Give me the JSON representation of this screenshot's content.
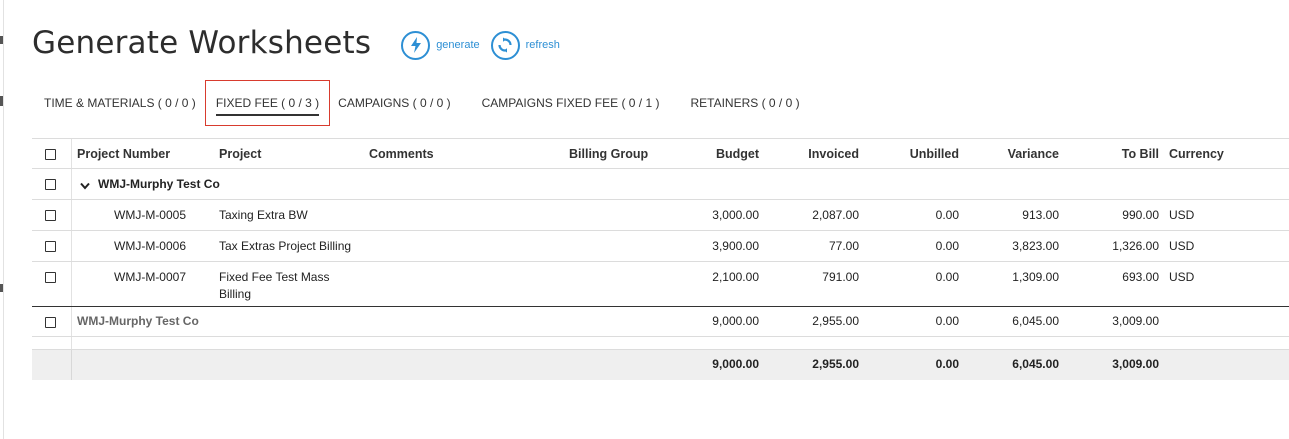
{
  "page": {
    "title": "Generate Worksheets",
    "actions": [
      {
        "label": "generate",
        "icon": "bolt-icon"
      },
      {
        "label": "refresh",
        "icon": "refresh-icon"
      }
    ]
  },
  "colors": {
    "accent": "#2d8fd4",
    "active_tab_border": "#d83b2e"
  },
  "tabs": [
    {
      "label": "TIME & MATERIALS ( 0 / 0 )"
    },
    {
      "label": "FIXED FEE ( 0 / 3 )",
      "active": true
    },
    {
      "label": "CAMPAIGNS ( 0 / 0 )"
    },
    {
      "label": "CAMPAIGNS FIXED FEE ( 0 / 1 )"
    },
    {
      "label": "RETAINERS ( 0 / 0 )"
    }
  ],
  "table": {
    "columns": {
      "project_number": "Project Number",
      "project": "Project",
      "comments": "Comments",
      "billing_group": "Billing Group",
      "budget": "Budget",
      "invoiced": "Invoiced",
      "unbilled": "Unbilled",
      "variance": "Variance",
      "to_bill": "To Bill",
      "currency": "Currency"
    },
    "group": {
      "name": "WMJ-Murphy Test Co"
    },
    "rows": [
      {
        "project_number": "WMJ-M-0005",
        "project": "Taxing Extra BW",
        "budget": "3,000.00",
        "invoiced": "2,087.00",
        "unbilled": "0.00",
        "variance": "913.00",
        "to_bill": "990.00",
        "currency": "USD"
      },
      {
        "project_number": "WMJ-M-0006",
        "project": "Tax Extras Project Billing",
        "budget": "3,900.00",
        "invoiced": "77.00",
        "unbilled": "0.00",
        "variance": "3,823.00",
        "to_bill": "1,326.00",
        "currency": "USD"
      },
      {
        "project_number": "WMJ-M-0007",
        "project_line1": "Fixed Fee Test Mass",
        "project_line2": "Billing",
        "budget": "2,100.00",
        "invoiced": "791.00",
        "unbilled": "0.00",
        "variance": "1,309.00",
        "to_bill": "693.00",
        "currency": "USD"
      }
    ],
    "subtotal": {
      "label": "WMJ-Murphy Test Co",
      "budget": "9,000.00",
      "invoiced": "2,955.00",
      "unbilled": "0.00",
      "variance": "6,045.00",
      "to_bill": "3,009.00"
    },
    "total": {
      "budget": "9,000.00",
      "invoiced": "2,955.00",
      "unbilled": "0.00",
      "variance": "6,045.00",
      "to_bill": "3,009.00"
    }
  }
}
